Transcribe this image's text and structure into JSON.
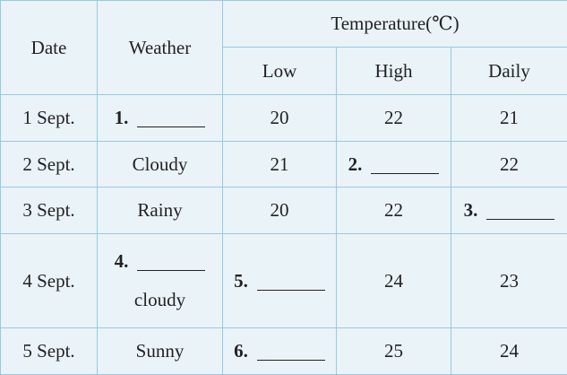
{
  "table": {
    "header": [
      "Date",
      "Weather",
      "Temperature(℃)"
    ],
    "subheader": [
      "Low",
      "High",
      "Daily"
    ],
    "rows": [
      [
        "1 Sept.",
        {
          "blank": "1."
        },
        20,
        22,
        21
      ],
      [
        "2 Sept.",
        "Cloudy",
        21,
        {
          "blank": "2."
        },
        22
      ],
      [
        "3 Sept.",
        "Rainy",
        20,
        22,
        {
          "blank": "3."
        }
      ],
      [
        "4 Sept.",
        {
          "blank": "4.",
          "text": "cloudy"
        },
        {
          "blank": "5."
        },
        24,
        23
      ],
      [
        "5 Sept.",
        "Sunny",
        {
          "blank": "6."
        },
        25,
        24
      ]
    ]
  }
}
